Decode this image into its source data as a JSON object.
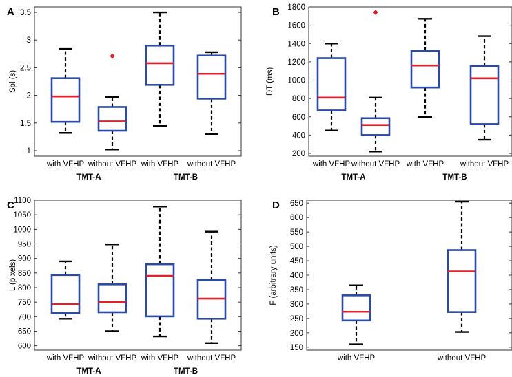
{
  "chart_data": [
    {
      "type": "box",
      "panel": "A",
      "ylabel": "Spl (s)",
      "ylim": [
        0.9,
        3.6
      ],
      "yticks": [
        1,
        1.5,
        2,
        2.5,
        3,
        3.5
      ],
      "categories": [
        "with VFHP",
        "without VFHP",
        "with VFHP",
        "without VFHP"
      ],
      "groups": [
        {
          "label": "TMT-A",
          "span": [
            0,
            1
          ]
        },
        {
          "label": "TMT-B",
          "span": [
            2,
            3
          ]
        }
      ],
      "boxes": [
        {
          "whislo": 1.32,
          "q1": 1.52,
          "med": 1.98,
          "q3": 2.31,
          "whishi": 2.84,
          "fliers": []
        },
        {
          "whislo": 1.02,
          "q1": 1.36,
          "med": 1.53,
          "q3": 1.79,
          "whishi": 1.97,
          "fliers": [
            2.71
          ]
        },
        {
          "whislo": 1.45,
          "q1": 2.19,
          "med": 2.58,
          "q3": 2.9,
          "whishi": 3.5,
          "fliers": []
        },
        {
          "whislo": 1.3,
          "q1": 1.94,
          "med": 2.39,
          "q3": 2.72,
          "whishi": 2.78,
          "fliers": []
        }
      ]
    },
    {
      "type": "box",
      "panel": "B",
      "ylabel": "DT (ms)",
      "ylim": [
        170,
        1800
      ],
      "yticks": [
        200,
        400,
        600,
        800,
        1000,
        1200,
        1400,
        1600,
        1800
      ],
      "categories": [
        "with VFHP",
        "without VFHP",
        "with VFHP",
        "without VFHP"
      ],
      "groups": [
        {
          "label": "TMT-A",
          "span": [
            0,
            1
          ]
        },
        {
          "label": "TMT-B",
          "span": [
            2,
            3
          ]
        }
      ],
      "boxes": [
        {
          "whislo": 450,
          "q1": 670,
          "med": 810,
          "q3": 1240,
          "whishi": 1400,
          "fliers": []
        },
        {
          "whislo": 220,
          "q1": 400,
          "med": 510,
          "q3": 585,
          "whishi": 810,
          "fliers": [
            1740
          ]
        },
        {
          "whislo": 600,
          "q1": 920,
          "med": 1160,
          "q3": 1320,
          "whishi": 1670,
          "fliers": []
        },
        {
          "whislo": 350,
          "q1": 520,
          "med": 1020,
          "q3": 1155,
          "whishi": 1480,
          "fliers": []
        }
      ]
    },
    {
      "type": "box",
      "panel": "C",
      "ylabel": "L (pixels)",
      "ylim": [
        585,
        1100
      ],
      "yticks": [
        600,
        650,
        700,
        750,
        800,
        850,
        900,
        950,
        1000,
        1050,
        1100
      ],
      "categories": [
        "with VFHP",
        "without VFHP",
        "with VFHP",
        "without VFHP"
      ],
      "groups": [
        {
          "label": "TMT-A",
          "span": [
            0,
            1
          ]
        },
        {
          "label": "TMT-B",
          "span": [
            2,
            3
          ]
        }
      ],
      "boxes": [
        {
          "whislo": 693,
          "q1": 712,
          "med": 743,
          "q3": 843,
          "whishi": 890,
          "fliers": []
        },
        {
          "whislo": 650,
          "q1": 715,
          "med": 750,
          "q3": 811,
          "whishi": 948,
          "fliers": []
        },
        {
          "whislo": 632,
          "q1": 701,
          "med": 840,
          "q3": 880,
          "whishi": 1078,
          "fliers": []
        },
        {
          "whislo": 609,
          "q1": 693,
          "med": 762,
          "q3": 826,
          "whishi": 992,
          "fliers": []
        }
      ]
    },
    {
      "type": "box",
      "panel": "D",
      "ylabel": "F (arbitrary units)",
      "ylim": [
        140,
        660
      ],
      "yticks": [
        150,
        200,
        250,
        300,
        350,
        400,
        450,
        500,
        550,
        600,
        650
      ],
      "categories": [
        "with VFHP",
        "without VFHP"
      ],
      "groups": [],
      "boxes": [
        {
          "whislo": 160,
          "q1": 243,
          "med": 273,
          "q3": 330,
          "whishi": 365,
          "fliers": []
        },
        {
          "whislo": 203,
          "q1": 272,
          "med": 413,
          "q3": 487,
          "whishi": 655,
          "fliers": []
        }
      ]
    }
  ]
}
